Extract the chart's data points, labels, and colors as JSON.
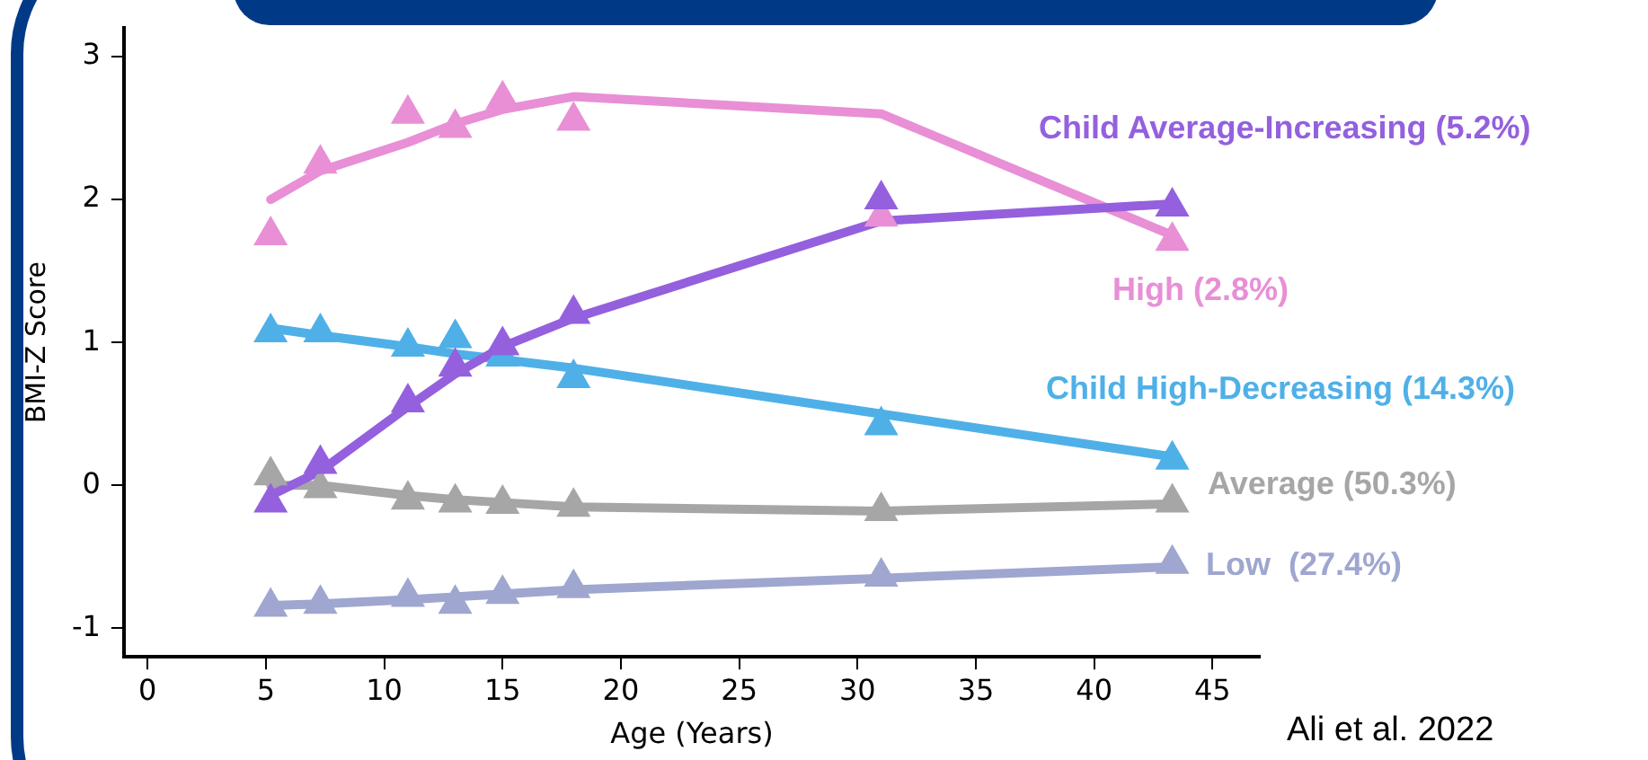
{
  "chart_data": {
    "type": "line",
    "xlabel": "Age (Years)",
    "ylabel": "BMI-Z Score",
    "x": [
      5.2,
      7.3,
      11,
      13,
      15,
      18,
      31,
      43.3
    ],
    "xlim": [
      -1,
      47
    ],
    "xticks": [
      0,
      5,
      10,
      15,
      20,
      25,
      30,
      35,
      40,
      45
    ],
    "ylim": [
      -1.2,
      3.2
    ],
    "yticks": [
      -1,
      0,
      1,
      2,
      3
    ],
    "grid": false,
    "legend": false,
    "line_style": "solid",
    "series": [
      {
        "name": "Child Average-Increasing (5.2%)",
        "marker": "none",
        "color": "#9460de",
        "values": [
          -0.07,
          0.1,
          0.55,
          0.78,
          0.97,
          1.17,
          1.85,
          1.97
        ]
      },
      {
        "type": "scatter",
        "marker": "triangle",
        "color": "#9460de",
        "values": [
          -0.12,
          0.15,
          0.58,
          0.83,
          0.98,
          1.2,
          2.0,
          1.95
        ]
      },
      {
        "name": "High (2.8%)",
        "marker": "none",
        "color": "#e88fd6",
        "values": [
          2.0,
          2.2,
          2.4,
          2.53,
          2.63,
          2.72,
          2.6,
          1.75
        ]
      },
      {
        "type": "scatter",
        "marker": "triangle",
        "color": "#e88fd6",
        "values": [
          1.75,
          2.25,
          2.6,
          2.5,
          2.7,
          2.55,
          1.88,
          1.71
        ]
      },
      {
        "name": "Child High-Decreasing (14.3%)",
        "marker": "none",
        "color": "#4fb0e8",
        "values": [
          1.1,
          1.05,
          0.97,
          0.92,
          0.88,
          0.82,
          0.5,
          0.2
        ]
      },
      {
        "type": "scatter",
        "marker": "triangle",
        "color": "#4fb0e8",
        "values": [
          1.07,
          1.07,
          0.97,
          1.03,
          0.9,
          0.75,
          0.42,
          0.18
        ]
      },
      {
        "name": "Average (50.3%)",
        "marker": "none",
        "color": "#a6a6a6",
        "values": [
          0.0,
          0.0,
          -0.07,
          -0.1,
          -0.12,
          -0.15,
          -0.18,
          -0.13
        ]
      },
      {
        "type": "scatter",
        "marker": "triangle",
        "color": "#a6a6a6",
        "values": [
          0.07,
          -0.02,
          -0.1,
          -0.12,
          -0.13,
          -0.15,
          -0.18,
          -0.12
        ]
      },
      {
        "name": "Low  (27.4%)",
        "marker": "none",
        "color": "#9fa6cf",
        "values": [
          -0.84,
          -0.83,
          -0.8,
          -0.78,
          -0.76,
          -0.73,
          -0.65,
          -0.57
        ]
      },
      {
        "type": "scatter",
        "marker": "triangle",
        "color": "#9fa6cf",
        "values": [
          -0.85,
          -0.83,
          -0.78,
          -0.83,
          -0.76,
          -0.72,
          -0.64,
          -0.55
        ]
      }
    ],
    "annotations": [
      "Ali et al. 2022"
    ]
  }
}
